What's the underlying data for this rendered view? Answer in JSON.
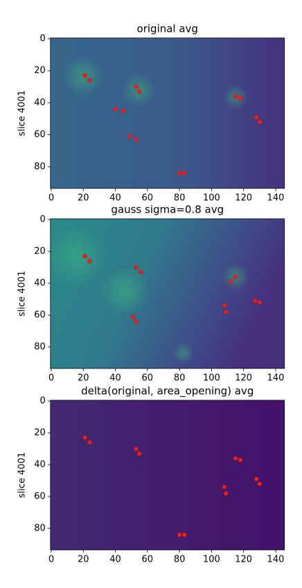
{
  "chart_data": [
    {
      "type": "scatter",
      "title": "original avg",
      "ylabel": "slice 4001",
      "color": "#e8221e",
      "x": [
        21,
        24,
        53,
        55,
        40,
        45,
        49,
        53,
        80,
        83,
        115,
        118,
        128,
        130
      ],
      "values": [
        23,
        26,
        30,
        33,
        44,
        45,
        61,
        63,
        84,
        84,
        36,
        37,
        49,
        52
      ],
      "xlim": [
        -0.5,
        145.5
      ],
      "ylim": [
        93.5,
        -0.5
      ],
      "xticks": [
        0,
        20,
        40,
        60,
        80,
        100,
        120,
        140
      ],
      "yticks": [
        0,
        20,
        40,
        60,
        80
      ]
    },
    {
      "type": "scatter",
      "title": "gauss sigma=0.8 avg",
      "ylabel": "slice 4001",
      "color": "#e8221e",
      "x": [
        21,
        24,
        53,
        56,
        51,
        53,
        112,
        115,
        108,
        109,
        127,
        130
      ],
      "values": [
        23,
        26,
        30,
        33,
        61,
        64,
        39,
        36,
        54,
        58,
        51,
        52
      ],
      "xlim": [
        -0.5,
        145.5
      ],
      "ylim": [
        93.5,
        -0.5
      ],
      "xticks": [
        0,
        20,
        40,
        60,
        80,
        100,
        120,
        140
      ],
      "yticks": [
        0,
        20,
        40,
        60,
        80
      ]
    },
    {
      "type": "scatter",
      "title": "delta(original, area_opening) avg",
      "ylabel": "slice 4001",
      "color": "#e8221e",
      "x": [
        21,
        24,
        53,
        55,
        80,
        83,
        115,
        118,
        108,
        109,
        128,
        130
      ],
      "values": [
        23,
        26,
        30,
        33,
        84,
        84,
        36,
        37,
        54,
        58,
        49,
        52
      ],
      "xlim": [
        -0.5,
        145.5
      ],
      "ylim": [
        93.5,
        -0.5
      ],
      "xticks": [
        0,
        20,
        40,
        60,
        80,
        100,
        120,
        140
      ],
      "yticks": [
        0,
        20,
        40,
        60,
        80
      ]
    }
  ]
}
